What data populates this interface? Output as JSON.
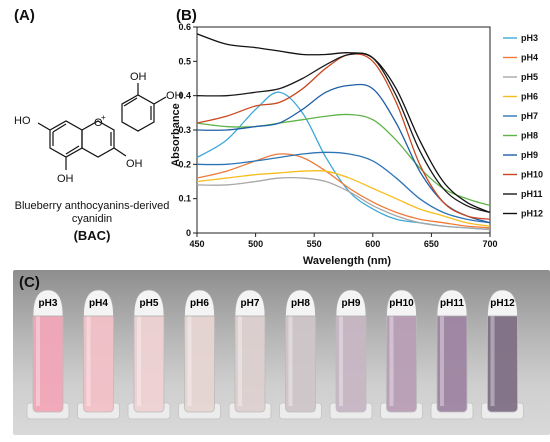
{
  "panel_labels": {
    "a": "(A)",
    "b": "(B)",
    "c": "(C)"
  },
  "molecule": {
    "caption_line1": "Blueberry anthocyanins-derived",
    "caption_line2": "cyanidin",
    "abbrev": "(BAC)",
    "atoms": {
      "oh_ring_top": "OH",
      "oh_ring_right": "OH",
      "oh_c3": "OH",
      "oh_c7": "HO",
      "oh_c5": "OH",
      "o_plus": "O",
      "plus": "+"
    }
  },
  "colors": {
    "pH3": "#3fa9d6",
    "pH4": "#ef7a3a",
    "pH5": "#a8a8a8",
    "pH6": "#f5bd1e",
    "pH7": "#2e75b6",
    "pH8": "#5fb347",
    "pH9": "#1f5fa8",
    "pH10": "#c8481f",
    "pH11": "#1a1a1a",
    "pH12": "#111111"
  },
  "chart_data": {
    "type": "line",
    "xlabel": "Wavelength (nm)",
    "ylabel": "Absorbance",
    "xlim": [
      450,
      700
    ],
    "ylim": [
      0,
      0.6
    ],
    "xticks": [
      450,
      500,
      550,
      600,
      650,
      700
    ],
    "yticks": [
      0,
      0.1,
      0.2,
      0.3,
      0.4,
      0.5,
      0.6
    ],
    "legend_position": "right",
    "x": [
      450,
      475,
      500,
      520,
      540,
      560,
      580,
      600,
      620,
      640,
      660,
      680,
      700
    ],
    "series": [
      {
        "name": "pH3",
        "values": [
          0.22,
          0.27,
          0.36,
          0.41,
          0.35,
          0.22,
          0.12,
          0.07,
          0.04,
          0.03,
          0.02,
          0.015,
          0.01
        ]
      },
      {
        "name": "pH4",
        "values": [
          0.16,
          0.18,
          0.21,
          0.23,
          0.22,
          0.18,
          0.13,
          0.09,
          0.06,
          0.04,
          0.03,
          0.02,
          0.015
        ]
      },
      {
        "name": "pH5",
        "values": [
          0.14,
          0.14,
          0.15,
          0.16,
          0.16,
          0.15,
          0.12,
          0.08,
          0.05,
          0.03,
          0.02,
          0.015,
          0.01
        ]
      },
      {
        "name": "pH6",
        "values": [
          0.15,
          0.16,
          0.17,
          0.175,
          0.18,
          0.18,
          0.16,
          0.13,
          0.1,
          0.07,
          0.05,
          0.03,
          0.02
        ]
      },
      {
        "name": "pH7",
        "values": [
          0.2,
          0.2,
          0.21,
          0.22,
          0.23,
          0.235,
          0.23,
          0.21,
          0.16,
          0.1,
          0.06,
          0.04,
          0.03
        ]
      },
      {
        "name": "pH8",
        "values": [
          0.32,
          0.31,
          0.31,
          0.32,
          0.33,
          0.34,
          0.345,
          0.33,
          0.27,
          0.19,
          0.13,
          0.1,
          0.08
        ]
      },
      {
        "name": "pH9",
        "values": [
          0.3,
          0.3,
          0.31,
          0.32,
          0.36,
          0.41,
          0.43,
          0.42,
          0.32,
          0.18,
          0.09,
          0.05,
          0.03
        ]
      },
      {
        "name": "pH10",
        "values": [
          0.32,
          0.34,
          0.37,
          0.38,
          0.42,
          0.48,
          0.52,
          0.5,
          0.38,
          0.2,
          0.09,
          0.05,
          0.04
        ]
      },
      {
        "name": "pH11",
        "values": [
          0.4,
          0.4,
          0.41,
          0.42,
          0.45,
          0.49,
          0.52,
          0.51,
          0.4,
          0.24,
          0.13,
          0.08,
          0.06
        ]
      },
      {
        "name": "pH12",
        "values": [
          0.58,
          0.55,
          0.54,
          0.53,
          0.52,
          0.52,
          0.525,
          0.51,
          0.42,
          0.27,
          0.15,
          0.09,
          0.06
        ]
      }
    ]
  },
  "photo": {
    "tubes": [
      {
        "label": "pH3",
        "color": "#f2a7b8"
      },
      {
        "label": "pH4",
        "color": "#f3c1c8"
      },
      {
        "label": "pH5",
        "color": "#efd2d4"
      },
      {
        "label": "pH6",
        "color": "#e7d6d3"
      },
      {
        "label": "pH7",
        "color": "#ddd1d0"
      },
      {
        "label": "pH8",
        "color": "#cfc6c9"
      },
      {
        "label": "pH9",
        "color": "#c8b7c4"
      },
      {
        "label": "pH10",
        "color": "#b99fb7"
      },
      {
        "label": "pH11",
        "color": "#9f86a3"
      },
      {
        "label": "pH12",
        "color": "#807086"
      }
    ]
  }
}
